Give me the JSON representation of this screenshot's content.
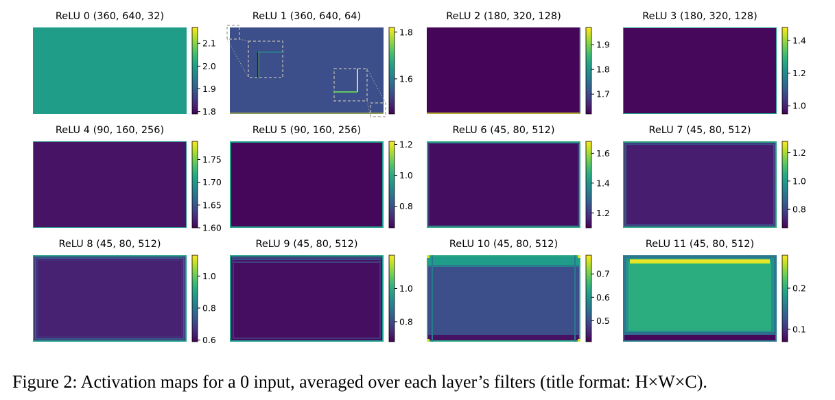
{
  "caption": "Figure 2: Activation maps for a 0 input, averaged over each layer’s filters (title format: H×W×C).",
  "colormap": [
    "#440154",
    "#482878",
    "#3e4989",
    "#31688e",
    "#26828e",
    "#1f9e89",
    "#35b779",
    "#6ece58",
    "#b5de2b",
    "#fde725"
  ],
  "chart_data": [
    {
      "type": "heatmap",
      "title": "ReLU 0 (360, 640, 32)",
      "colorbar_ticks": [
        "1.8",
        "1.9",
        "2.0",
        "2.1"
      ],
      "colorbar_range": [
        1.79,
        2.17
      ],
      "interior_value": 2.0,
      "border": "none"
    },
    {
      "type": "heatmap",
      "title": "ReLU 1 (360, 640, 64)",
      "colorbar_ticks": [
        "1.6",
        "1.8"
      ],
      "colorbar_range": [
        1.45,
        1.82
      ],
      "interior_value": 1.54,
      "border": "zoomed corner insets showing bright edge lines"
    },
    {
      "type": "heatmap",
      "title": "ReLU 2 (180, 320, 128)",
      "colorbar_ticks": [
        "1.7",
        "1.8",
        "1.9"
      ],
      "colorbar_range": [
        1.62,
        1.97
      ],
      "interior_value": 1.625,
      "border": "bright bottom and right edges"
    },
    {
      "type": "heatmap",
      "title": "ReLU 3 (180, 320, 128)",
      "colorbar_ticks": [
        "1.0",
        "1.2",
        "1.4"
      ],
      "colorbar_range": [
        0.95,
        1.48
      ],
      "interior_value": 0.96,
      "border": "thin bright edge"
    },
    {
      "type": "heatmap",
      "title": "ReLU 4 (90, 160, 256)",
      "colorbar_ticks": [
        "1.60",
        "1.65",
        "1.70",
        "1.75"
      ],
      "colorbar_range": [
        1.6,
        1.79
      ],
      "interior_value": 1.61,
      "border": "thin bright edge"
    },
    {
      "type": "heatmap",
      "title": "ReLU 5 (90, 160, 256)",
      "colorbar_ticks": [
        "0.8",
        "1.0",
        "1.2"
      ],
      "colorbar_range": [
        0.66,
        1.22
      ],
      "interior_value": 0.67,
      "border": "thin bright edge"
    },
    {
      "type": "heatmap",
      "title": "ReLU 6 (45, 80, 512)",
      "colorbar_ticks": [
        "1.2",
        "1.4",
        "1.6"
      ],
      "colorbar_range": [
        1.1,
        1.68
      ],
      "interior_value": 1.12,
      "border": "bright edge"
    },
    {
      "type": "heatmap",
      "title": "ReLU 7 (45, 80, 512)",
      "colorbar_ticks": [
        "0.8",
        "1.0",
        "1.2"
      ],
      "colorbar_range": [
        0.67,
        1.28
      ],
      "interior_value": 0.72,
      "border": "bright edge"
    },
    {
      "type": "heatmap",
      "title": "ReLU 8 (45, 80, 512)",
      "colorbar_ticks": [
        "0.6",
        "0.8",
        "1.0"
      ],
      "colorbar_range": [
        0.59,
        1.13
      ],
      "interior_value": 0.64,
      "border": "bright banded edge"
    },
    {
      "type": "heatmap",
      "title": "ReLU 9 (45, 80, 512)",
      "colorbar_ticks": [
        "0.8",
        "1.0"
      ],
      "colorbar_range": [
        0.68,
        1.2
      ],
      "interior_value": 0.7,
      "border": "bright banded edge"
    },
    {
      "type": "heatmap",
      "title": "ReLU 10 (45, 80, 512)",
      "colorbar_ticks": [
        "0.5",
        "0.6",
        "0.7"
      ],
      "colorbar_range": [
        0.41,
        0.78
      ],
      "interior_value": 0.5,
      "border": "teal top band, bright corners"
    },
    {
      "type": "heatmap",
      "title": "ReLU 11 (45, 80, 512)",
      "colorbar_ticks": [
        "0.1",
        "0.2"
      ],
      "colorbar_range": [
        0.07,
        0.28
      ],
      "interior_value": 0.2,
      "border": "yellow top line, dark bottom band"
    }
  ]
}
